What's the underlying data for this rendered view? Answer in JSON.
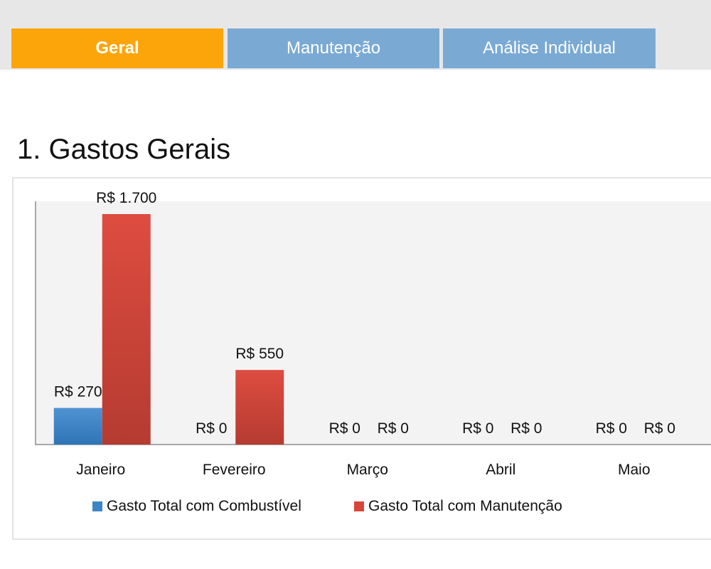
{
  "tabs": [
    {
      "label": "Geral",
      "active": true
    },
    {
      "label": "Manutenção",
      "active": false
    },
    {
      "label": "Análise Individual",
      "active": false
    }
  ],
  "section": {
    "title": "1. Gastos Gerais"
  },
  "colors": {
    "active_tab": "#fca50a",
    "inactive_tab": "#7aaad4",
    "combustivel": "#3d85c6",
    "manutencao": "#d9453a",
    "plot_bg": "#f3f3f3"
  },
  "chart_data": {
    "type": "bar",
    "categories": [
      "Janeiro",
      "Fevereiro",
      "Março",
      "Abril",
      "Maio"
    ],
    "series": [
      {
        "name": "Gasto Total com Combustível",
        "values": [
          270,
          0,
          0,
          0,
          0
        ],
        "labels": [
          "R$ 270",
          "R$ 0",
          "R$ 0",
          "R$ 0",
          "R$ 0"
        ]
      },
      {
        "name": "Gasto Total com Manutenção",
        "values": [
          1700,
          550,
          0,
          0,
          0
        ],
        "labels": [
          "R$ 1.700",
          "R$ 550",
          "R$ 0",
          "R$ 0",
          "R$ 0"
        ]
      }
    ],
    "title": "",
    "xlabel": "",
    "ylabel": "",
    "ylim": [
      0,
      1700
    ],
    "grid": false,
    "legend": "bottom"
  }
}
